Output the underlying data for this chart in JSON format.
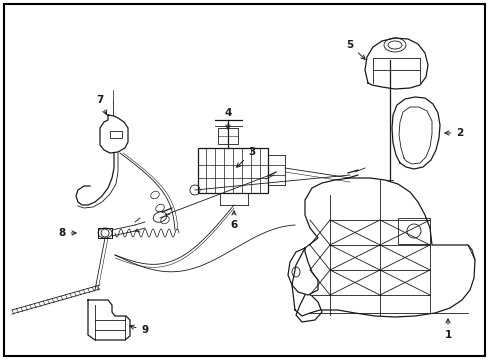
{
  "background_color": "#ffffff",
  "border_color": "#000000",
  "line_color": "#1a1a1a",
  "fig_width": 4.89,
  "fig_height": 3.6,
  "dpi": 100,
  "label_fontsize": 7.5
}
